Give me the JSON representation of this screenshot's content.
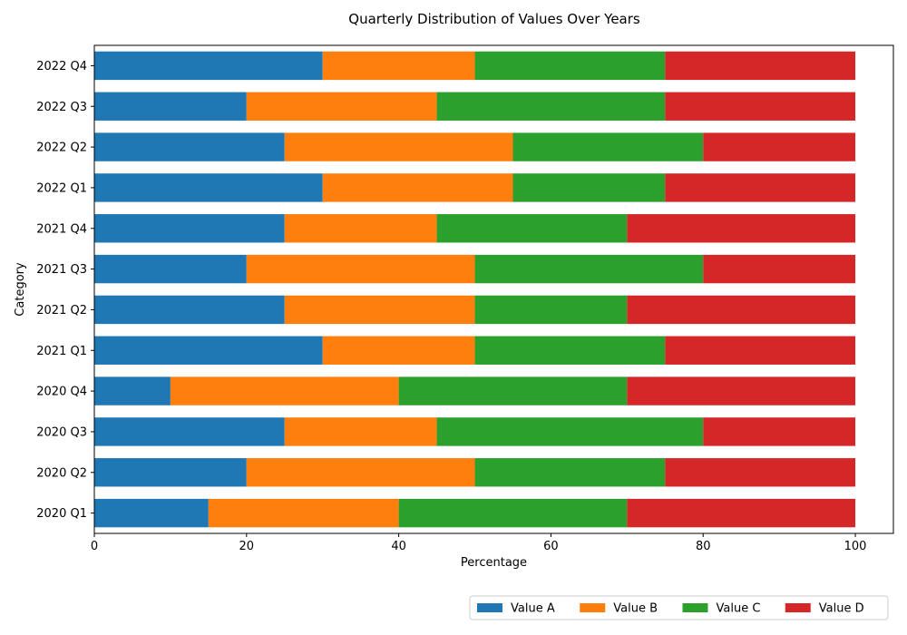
{
  "chart_data": {
    "type": "bar",
    "orientation": "horizontal",
    "stacked": true,
    "title": "Quarterly Distribution of Values Over Years",
    "xlabel": "Percentage",
    "ylabel": "Category",
    "xlim": [
      0,
      105
    ],
    "xticks": [
      0,
      20,
      40,
      60,
      80,
      100
    ],
    "grid": false,
    "legend_position": "bottom-right",
    "categories": [
      "2020 Q1",
      "2020 Q2",
      "2020 Q3",
      "2020 Q4",
      "2021 Q1",
      "2021 Q2",
      "2021 Q3",
      "2021 Q4",
      "2022 Q1",
      "2022 Q2",
      "2022 Q3",
      "2022 Q4"
    ],
    "series": [
      {
        "name": "Value A",
        "color": "#1f77b4",
        "values": [
          15,
          20,
          25,
          10,
          30,
          25,
          20,
          25,
          30,
          25,
          20,
          30
        ]
      },
      {
        "name": "Value B",
        "color": "#ff7f0e",
        "values": [
          25,
          30,
          20,
          30,
          20,
          25,
          30,
          20,
          25,
          30,
          25,
          20
        ]
      },
      {
        "name": "Value C",
        "color": "#2ca02c",
        "values": [
          30,
          25,
          35,
          30,
          25,
          20,
          30,
          25,
          20,
          25,
          30,
          25
        ]
      },
      {
        "name": "Value D",
        "color": "#d62728",
        "values": [
          30,
          25,
          20,
          30,
          25,
          30,
          20,
          30,
          25,
          20,
          25,
          25
        ]
      }
    ]
  }
}
